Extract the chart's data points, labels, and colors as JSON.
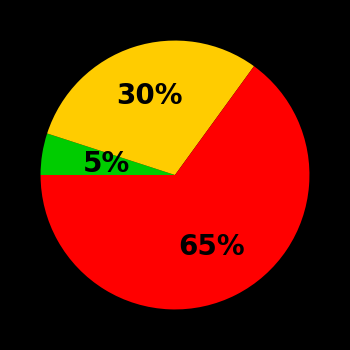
{
  "slices": [
    5,
    30,
    65
  ],
  "colors": [
    "#00cc00",
    "#ffcc00",
    "#ff0000"
  ],
  "labels": [
    "5%",
    "30%",
    "65%"
  ],
  "background_color": "#000000",
  "startangle": 180,
  "figsize": [
    3.5,
    3.5
  ],
  "dpi": 100,
  "label_fontsize": 20,
  "label_fontweight": "bold",
  "label_radii": [
    0.52,
    0.62,
    0.6
  ],
  "counterclock": false
}
